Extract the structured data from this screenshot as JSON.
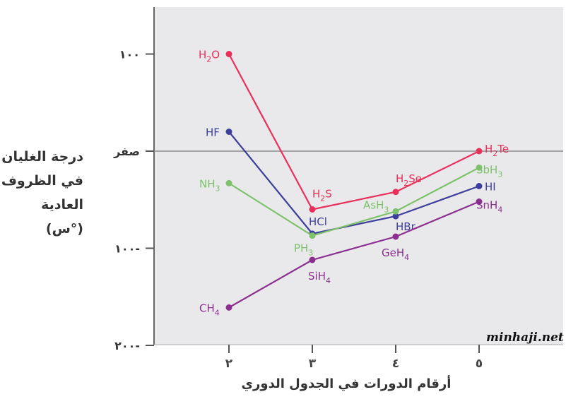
{
  "chart_data": {
    "type": "line",
    "x": [
      2,
      3,
      4,
      5
    ],
    "xticks": [
      "٢",
      "٣",
      "٤",
      "٥"
    ],
    "yticks": [
      {
        "value": 100,
        "label": "١٠٠"
      },
      {
        "value": 0,
        "label": "صفر"
      },
      {
        "value": -100,
        "label": "١٠٠-"
      },
      {
        "value": -200,
        "label": "٢٠٠-"
      }
    ],
    "ylim": [
      -200,
      150
    ],
    "xlabel": "أرقام الدورات في الجدول الدوري",
    "ylabel_lines": [
      "درجة الغليان",
      "في الظروف",
      "العادية",
      "(°س)"
    ],
    "zero_reference_line": true,
    "series": [
      {
        "color": "#e8305a",
        "values": [
          100,
          -60,
          -42,
          0
        ],
        "labels": [
          {
            "base": "H",
            "sub": "2",
            "rest": "O"
          },
          {
            "base": "H",
            "sub": "2",
            "rest": "S"
          },
          {
            "base": "H",
            "sub": "2",
            "rest": "Se"
          },
          {
            "base": "H",
            "sub": "2",
            "rest": "Te"
          }
        ]
      },
      {
        "color": "#3d3f9a",
        "values": [
          20,
          -85,
          -67,
          -36
        ],
        "labels": [
          {
            "base": "HF",
            "sub": "",
            "rest": ""
          },
          {
            "base": "HCl",
            "sub": "",
            "rest": ""
          },
          {
            "base": "HBr",
            "sub": "",
            "rest": ""
          },
          {
            "base": "HI",
            "sub": "",
            "rest": ""
          }
        ]
      },
      {
        "color": "#7dc26b",
        "values": [
          -33,
          -87,
          -62,
          -17
        ],
        "labels": [
          {
            "base": "NH",
            "sub": "3",
            "rest": ""
          },
          {
            "base": "PH",
            "sub": "3",
            "rest": ""
          },
          {
            "base": "AsH",
            "sub": "3",
            "rest": ""
          },
          {
            "base": "SbH",
            "sub": "3",
            "rest": ""
          }
        ]
      },
      {
        "color": "#8b2f8f",
        "values": [
          -161,
          -112,
          -88,
          -52
        ],
        "labels": [
          {
            "base": "CH",
            "sub": "4",
            "rest": ""
          },
          {
            "base": "SiH",
            "sub": "4",
            "rest": ""
          },
          {
            "base": "GeH",
            "sub": "4",
            "rest": ""
          },
          {
            "base": "SnH",
            "sub": "4",
            "rest": ""
          }
        ]
      }
    ]
  },
  "watermark": "minhaji.net"
}
